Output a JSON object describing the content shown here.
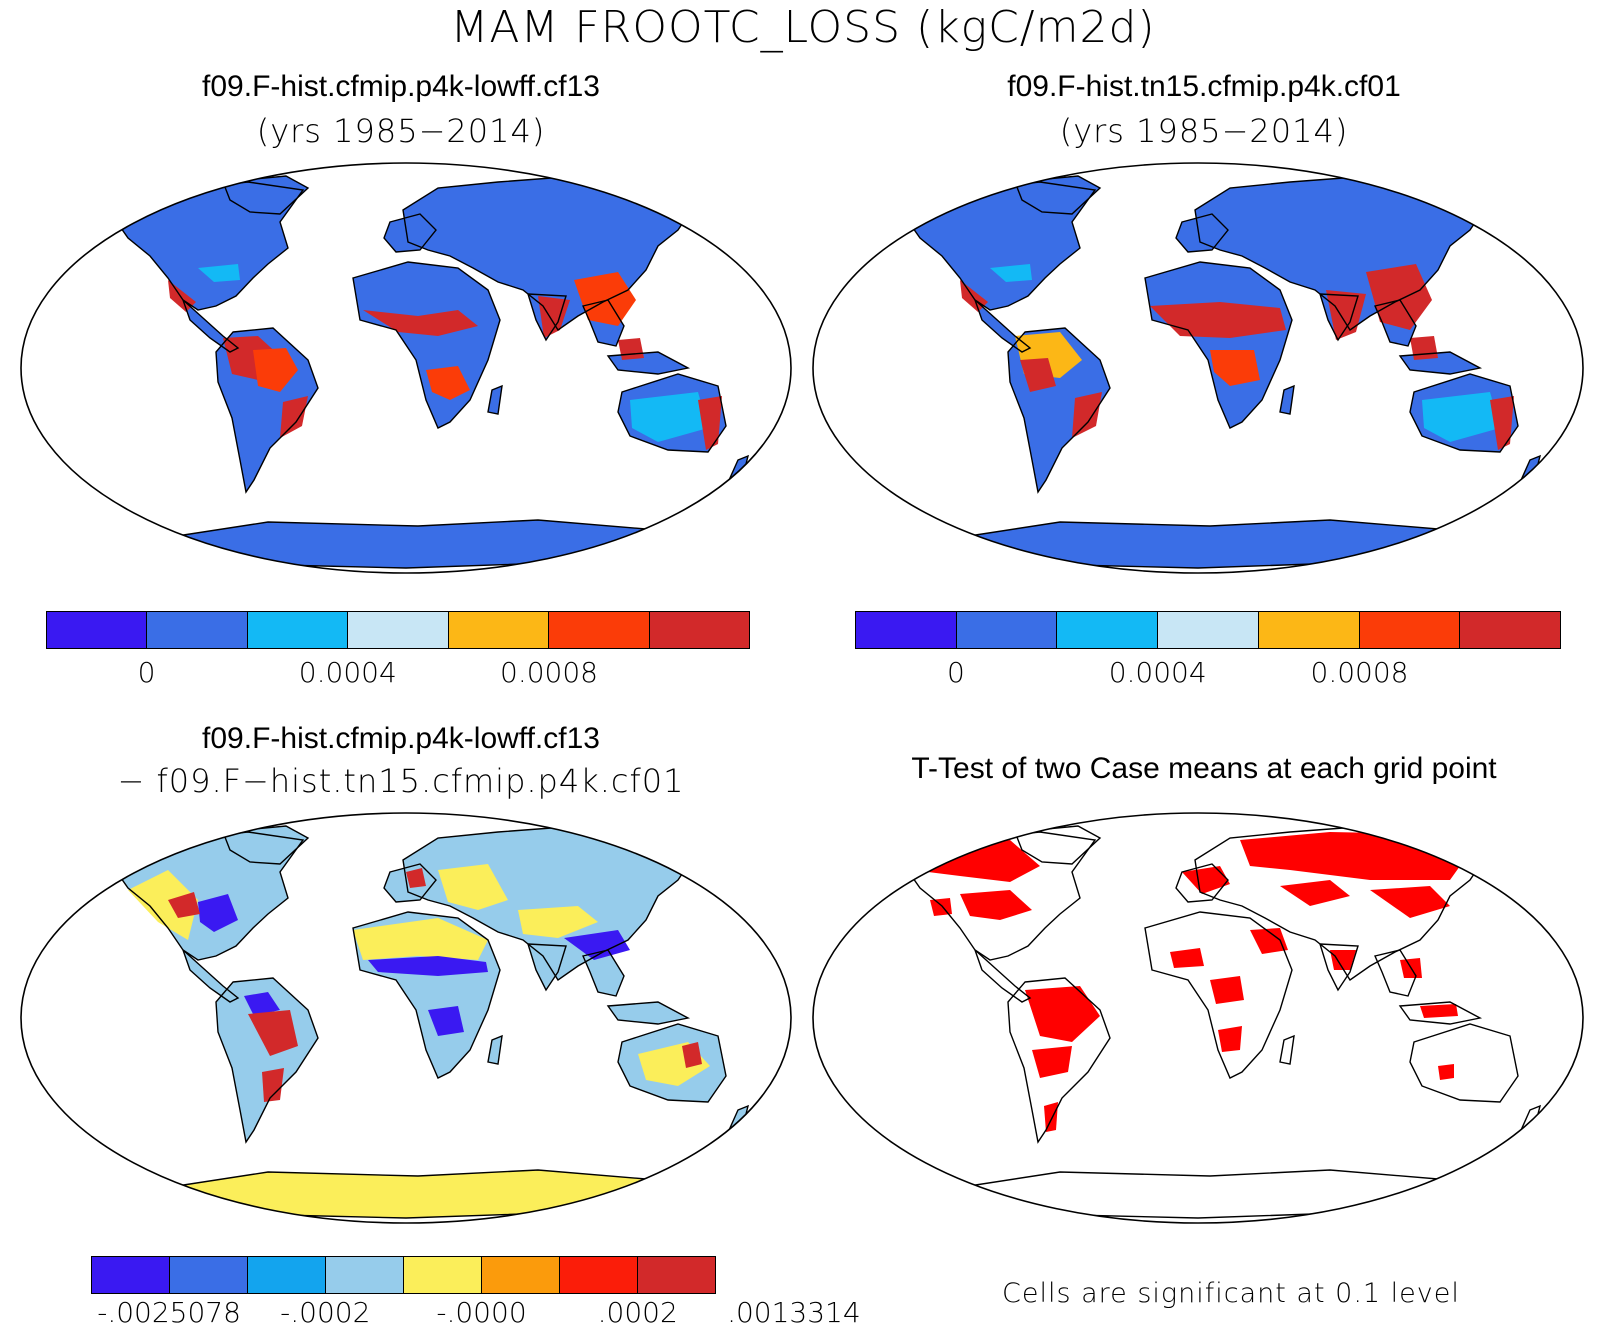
{
  "main_title": "MAM FROOTC_LOSS (kgC/m2d)",
  "panels": {
    "p1": {
      "title": "f09.F-hist.cfmip.p4k-lowff.cf13",
      "subtitle": "(yrs 1985−2014)"
    },
    "p2": {
      "title": "f09.F-hist.tn15.cfmip.p4k.cf01",
      "subtitle": "(yrs 1985−2014)"
    },
    "p3": {
      "title": "f09.F-hist.cfmip.p4k-lowff.cf13",
      "subtitle": "− f09.F−hist.tn15.cfmip.p4k.cf01"
    },
    "p4": {
      "title": "T-Test of two Case means at each grid point",
      "footnote": "Cells are significant at 0.1 level"
    }
  },
  "colorbars": {
    "case": {
      "colors": [
        "#3a19f2",
        "#3a6ee6",
        "#13b9f5",
        "#c8e6f5",
        "#fcb716",
        "#fb3c08",
        "#d2292a"
      ],
      "ticks": [
        "0",
        "0.0004",
        "0.0008"
      ]
    },
    "diff": {
      "colors": [
        "#3a19f2",
        "#3a6ee6",
        "#13a4ee",
        "#96cceb",
        "#fbee5a",
        "#fb9b0c",
        "#fb1d09",
        "#d2292a"
      ],
      "ticks": [
        "-.0025078",
        "-.0002",
        "-.0000",
        ".0002",
        ".0013314"
      ]
    }
  },
  "map_fills": {
    "case_land": "#3a6ee6",
    "case_hot": "#d2292a",
    "case_orange": "#fb3c08",
    "case_yellow": "#fcb716",
    "case_light": "#13b9f5",
    "diff_land": "#96cceb",
    "diff_yellow": "#fbee5a",
    "diff_blue": "#3a19f2",
    "diff_red": "#d2292a",
    "ttest_sig": "#ff0000"
  }
}
